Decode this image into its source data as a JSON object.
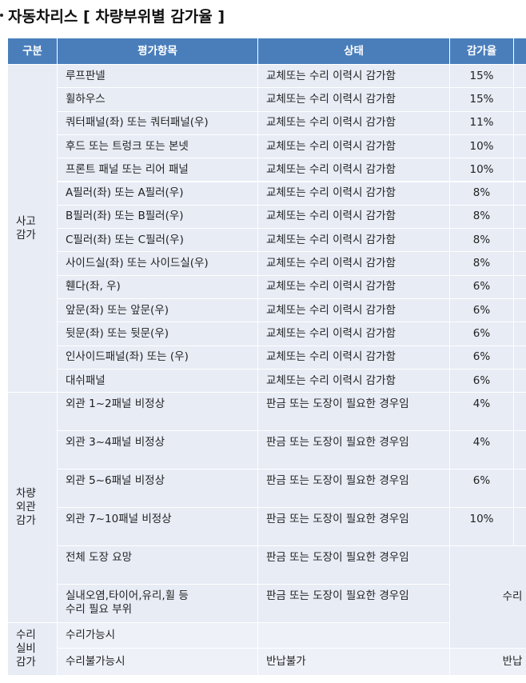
{
  "title": "자동차리스 [ 차량부위별 감가율 ]",
  "table": {
    "header": [
      "구분",
      "평가항목",
      "상태",
      "감가율"
    ],
    "groups": [
      {
        "label": "사고\n감가",
        "rows": [
          {
            "item": "루프판넬",
            "state": "교체또는 수리 이력시 감가함",
            "rate": "15%"
          },
          {
            "item": "휠하우스",
            "state": "교체또는 수리 이력시 감가함",
            "rate": "15%"
          },
          {
            "item": "쿼터패널(좌) 또는 쿼터패널(우)",
            "state": "교체또는 수리 이력시 감가함",
            "rate": "11%"
          },
          {
            "item": "후드 또는 트렁크 또는 본넷",
            "state": "교체또는 수리 이력시 감가함",
            "rate": "10%"
          },
          {
            "item": "프론트 패널 또는 리어 패널",
            "state": "교체또는 수리 이력시 감가함",
            "rate": "10%"
          },
          {
            "item": "A필러(좌) 또는 A필러(우)",
            "state": "교체또는 수리 이력시 감가함",
            "rate": "8%"
          },
          {
            "item": "B필러(좌) 또는 B필러(우)",
            "state": "교체또는 수리 이력시 감가함",
            "rate": "8%"
          },
          {
            "item": "C필러(좌) 또는 C필러(우)",
            "state": "교체또는 수리 이력시 감가함",
            "rate": "8%"
          },
          {
            "item": "사이드실(좌) 또는 사이드실(우)",
            "state": "교체또는 수리 이력시 감가함",
            "rate": "8%"
          },
          {
            "item": "휀다(좌, 우)",
            "state": "교체또는 수리 이력시 감가함",
            "rate": "6%"
          },
          {
            "item": "앞문(좌) 또는 앞문(우)",
            "state": "교체또는 수리 이력시 감가함",
            "rate": "6%"
          },
          {
            "item": "뒷문(좌) 또는 뒷문(우)",
            "state": "교체또는 수리 이력시 감가함",
            "rate": "6%"
          },
          {
            "item": "인사이드패널(좌) 또는 (우)",
            "state": "교체또는 수리 이력시 감가함",
            "rate": "6%"
          },
          {
            "item": "대쉬패널",
            "state": "교체또는 수리 이력시 감가함",
            "rate": "6%"
          }
        ]
      },
      {
        "label": "차량\n외관\n감가",
        "rows": [
          {
            "item": "외관 1~2패널 비정상",
            "state": "판금 또는 도장이 필요한 경우임",
            "rate": "4%"
          },
          {
            "item": "외관 3~4패널 비정상",
            "state": "판금 또는 도장이 필요한 경우임",
            "rate": "4%"
          },
          {
            "item": "외관 5~6패널 비정상",
            "state": "판금 또는 도장이 필요한 경우임",
            "rate": "6%"
          },
          {
            "item": "외관 7~10패널 비정상",
            "state": "판금 또는 도장이 필요한 경우임",
            "rate": "10%"
          },
          {
            "item": "전체 도장 요망",
            "state": "판금 또는 도장이 필요한 경우임"
          },
          {
            "item": "실내오염,타이어,유리,휠 등\n수리 필요 부위",
            "state": "판금 또는 도장이 필요한 경우임"
          }
        ]
      },
      {
        "label": "수리\n실비\n감가",
        "rows": [
          {
            "item": "수리가능시"
          },
          {
            "item": "수리불가능시",
            "state": "반납불가"
          }
        ]
      }
    ],
    "merged": [
      "수리",
      "반납"
    ]
  }
}
